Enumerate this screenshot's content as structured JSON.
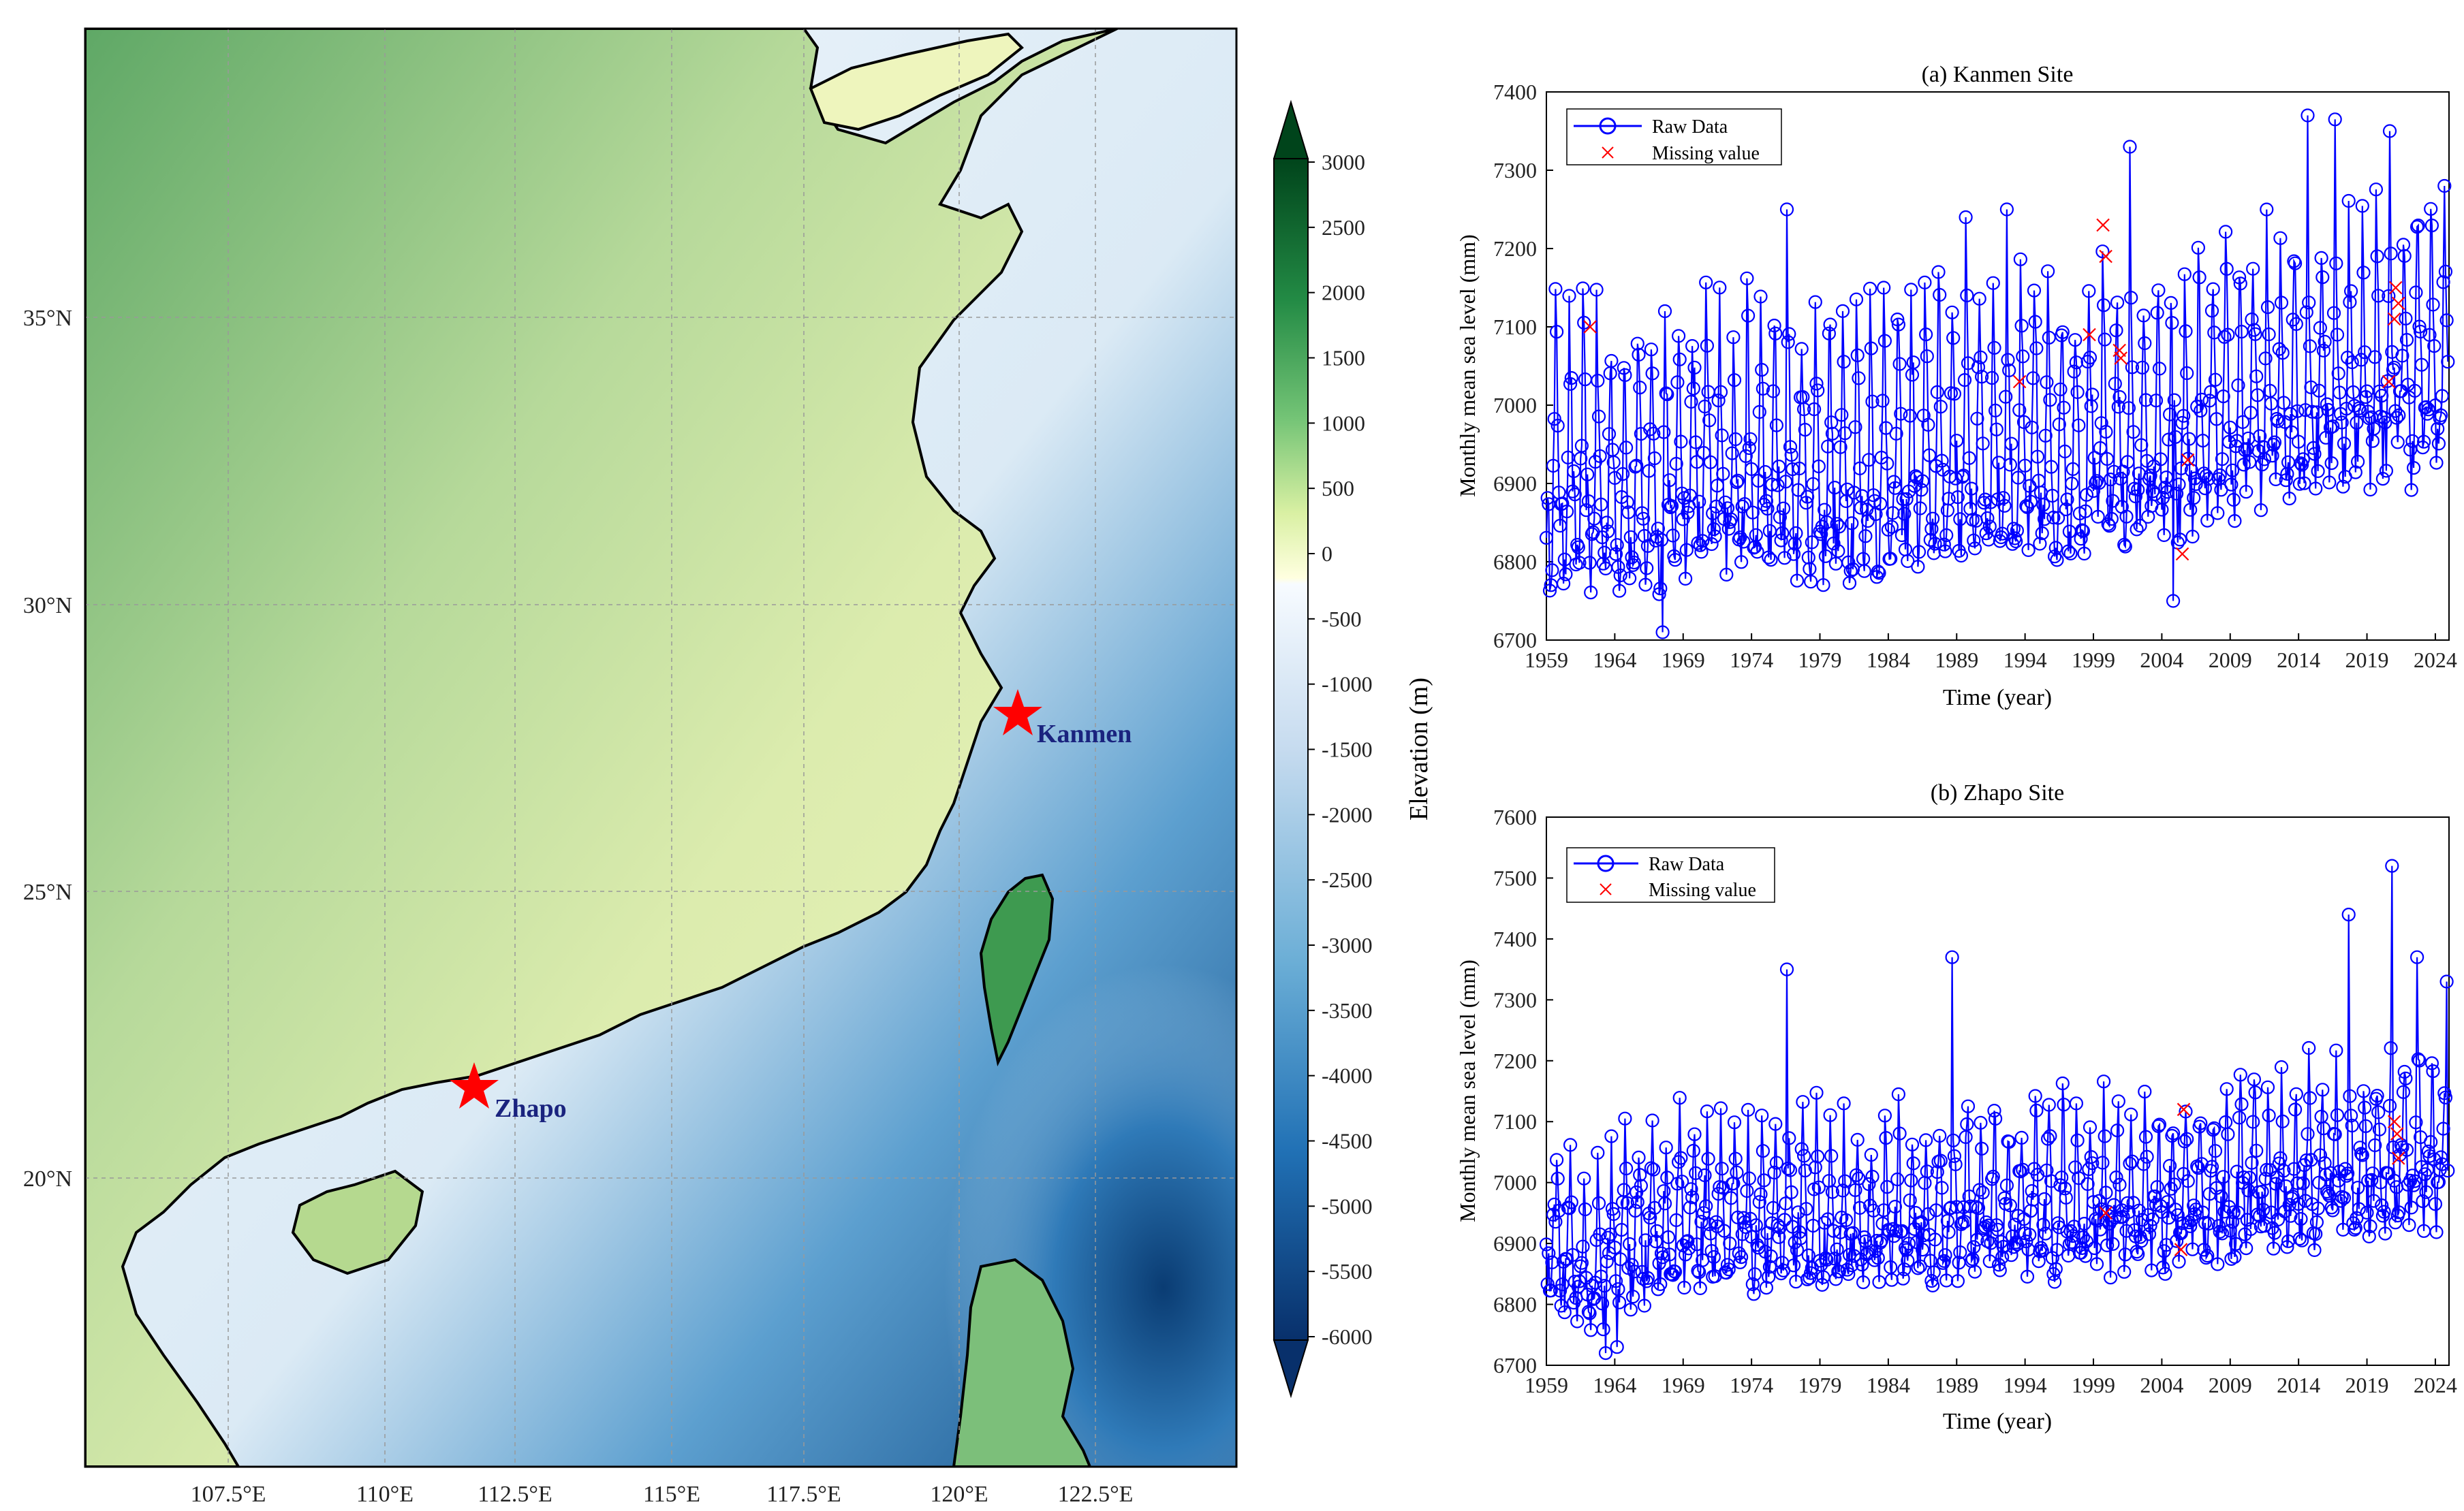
{
  "colors": {
    "raw_series": "#0000ff",
    "missing_marker": "#ff0000",
    "star": "#ff0000",
    "station_label": "#1a237e",
    "coastline": "#000000",
    "ocean_shallow": "#f3f8fc",
    "ocean_deep": "#0b3d73",
    "land_low": "#f8f9c8",
    "land_high": "#0b5e2a"
  },
  "map": {
    "lon_ticks": [
      "107.5°E",
      "110°E",
      "112.5°E",
      "115°E",
      "117.5°E",
      "120°E",
      "122.5°E"
    ],
    "lat_ticks": [
      "35°N",
      "30°N",
      "25°N",
      "20°N"
    ],
    "stations": [
      {
        "name": "Kanmen",
        "lon": 121.3,
        "lat": 28.1
      },
      {
        "name": "Zhapo",
        "lon": 111.8,
        "lat": 21.6
      }
    ],
    "colorbar": {
      "label": "Elevation (m)",
      "ticks": [
        "3000",
        "2500",
        "2000",
        "1500",
        "1000",
        "500",
        "0",
        "-500",
        "-1000",
        "-1500",
        "-2000",
        "-2500",
        "-3000",
        "-3500",
        "-4000",
        "-4500",
        "-5000",
        "-5500",
        "-6000"
      ]
    }
  },
  "chart_data": [
    {
      "type": "line",
      "title": "(a) Kanmen Site",
      "xlabel": "Time (year)",
      "ylabel": "Monthly mean sea level (mm)",
      "xlim": [
        1959,
        2025
      ],
      "ylim": [
        6700,
        7400
      ],
      "x_ticks": [
        "1959",
        "1964",
        "1969",
        "1974",
        "1979",
        "1984",
        "1989",
        "1994",
        "1999",
        "2004",
        "2009",
        "2014",
        "2019",
        "2024"
      ],
      "y_ticks": [
        "6700",
        "6800",
        "6900",
        "7000",
        "7100",
        "7200",
        "7300",
        "7400"
      ],
      "legend": {
        "position": "top-left",
        "entries": [
          "Raw Data",
          "Missing value"
        ]
      },
      "series": [
        {
          "name": "Raw Data",
          "marker": "circle",
          "x_start": 1959.0,
          "step_years": 0.08333,
          "annual_cycle_mm": [
            -60,
            -90,
            -110,
            -120,
            -110,
            -95,
            -40,
            40,
            170,
            130,
            60,
            -10
          ],
          "yearly_mean_mm": [
            [
              1959,
              6935
            ],
            [
              1965,
              6915
            ],
            [
              1970,
              6945
            ],
            [
              1975,
              6935
            ],
            [
              1980,
              6935
            ],
            [
              1985,
              6945
            ],
            [
              1990,
              6970
            ],
            [
              1995,
              6960
            ],
            [
              2000,
              6975
            ],
            [
              2005,
              6970
            ],
            [
              2010,
              7015
            ],
            [
              2015,
              7050
            ],
            [
              2020,
              7060
            ],
            [
              2024,
              7070
            ]
          ],
          "extremes": [
            [
              1967.5,
              6710
            ],
            [
              1976.6,
              7250
            ],
            [
              1983.7,
              7150
            ],
            [
              1989.7,
              7240
            ],
            [
              1992.7,
              7250
            ],
            [
              2001.7,
              7330
            ],
            [
              2004.8,
              6750
            ],
            [
              2014.7,
              7370
            ],
            [
              2016.7,
              7365
            ],
            [
              2020.7,
              7350
            ],
            [
              2024.7,
              7280
            ]
          ]
        },
        {
          "name": "Missing value",
          "marker": "x",
          "points": [
            [
              1962.2,
              7100
            ],
            [
              1993.6,
              7030
            ],
            [
              1998.7,
              7090
            ],
            [
              1999.7,
              7230
            ],
            [
              1999.9,
              7190
            ],
            [
              2000.9,
              7070
            ],
            [
              2001.0,
              7060
            ],
            [
              2005.5,
              6810
            ],
            [
              2005.9,
              6930
            ],
            [
              2020.6,
              7030
            ],
            [
              2021.0,
              7110
            ],
            [
              2021.1,
              7150
            ],
            [
              2021.3,
              7130
            ]
          ]
        }
      ]
    },
    {
      "type": "line",
      "title": "(b) Zhapo Site",
      "xlabel": "Time (year)",
      "ylabel": "Monthly mean sea level (mm)",
      "xlim": [
        1959,
        2025
      ],
      "ylim": [
        6700,
        7600
      ],
      "x_ticks": [
        "1959",
        "1964",
        "1969",
        "1974",
        "1979",
        "1984",
        "1989",
        "1994",
        "1999",
        "2004",
        "2009",
        "2014",
        "2019",
        "2024"
      ],
      "y_ticks": [
        "6700",
        "6800",
        "6900",
        "7000",
        "7100",
        "7200",
        "7300",
        "7400",
        "7500",
        "7600"
      ],
      "legend": {
        "position": "top-left",
        "entries": [
          "Raw Data",
          "Missing value"
        ]
      },
      "series": [
        {
          "name": "Raw Data",
          "marker": "circle",
          "x_start": 1959.0,
          "step_years": 0.08333,
          "annual_cycle_mm": [
            -40,
            -70,
            -80,
            -75,
            -60,
            -40,
            -20,
            10,
            60,
            150,
            110,
            20
          ],
          "yearly_mean_mm": [
            [
              1959,
              6935
            ],
            [
              1962,
              6860
            ],
            [
              1964,
              6900
            ],
            [
              1966,
              6930
            ],
            [
              1970,
              6950
            ],
            [
              1975,
              6945
            ],
            [
              1980,
              6945
            ],
            [
              1985,
              6950
            ],
            [
              1990,
              6965
            ],
            [
              1995,
              6960
            ],
            [
              2000,
              6970
            ],
            [
              2005,
              6975
            ],
            [
              2010,
              6995
            ],
            [
              2015,
              7020
            ],
            [
              2020,
              7030
            ],
            [
              2024,
              7040
            ]
          ],
          "extremes": [
            [
              1963.3,
              6720
            ],
            [
              1964.2,
              6730
            ],
            [
              1976.6,
              7350
            ],
            [
              1988.7,
              7370
            ],
            [
              2017.7,
              7440
            ],
            [
              2020.8,
              7520
            ],
            [
              2022.7,
              7370
            ],
            [
              2024.8,
              7330
            ]
          ]
        },
        {
          "name": "Missing value",
          "marker": "x",
          "points": [
            [
              1999.9,
              6950
            ],
            [
              2005.6,
              7120
            ],
            [
              2005.4,
              6890
            ],
            [
              2021.0,
              7100
            ],
            [
              2021.2,
              7080
            ],
            [
              2021.3,
              7040
            ]
          ]
        }
      ]
    }
  ]
}
